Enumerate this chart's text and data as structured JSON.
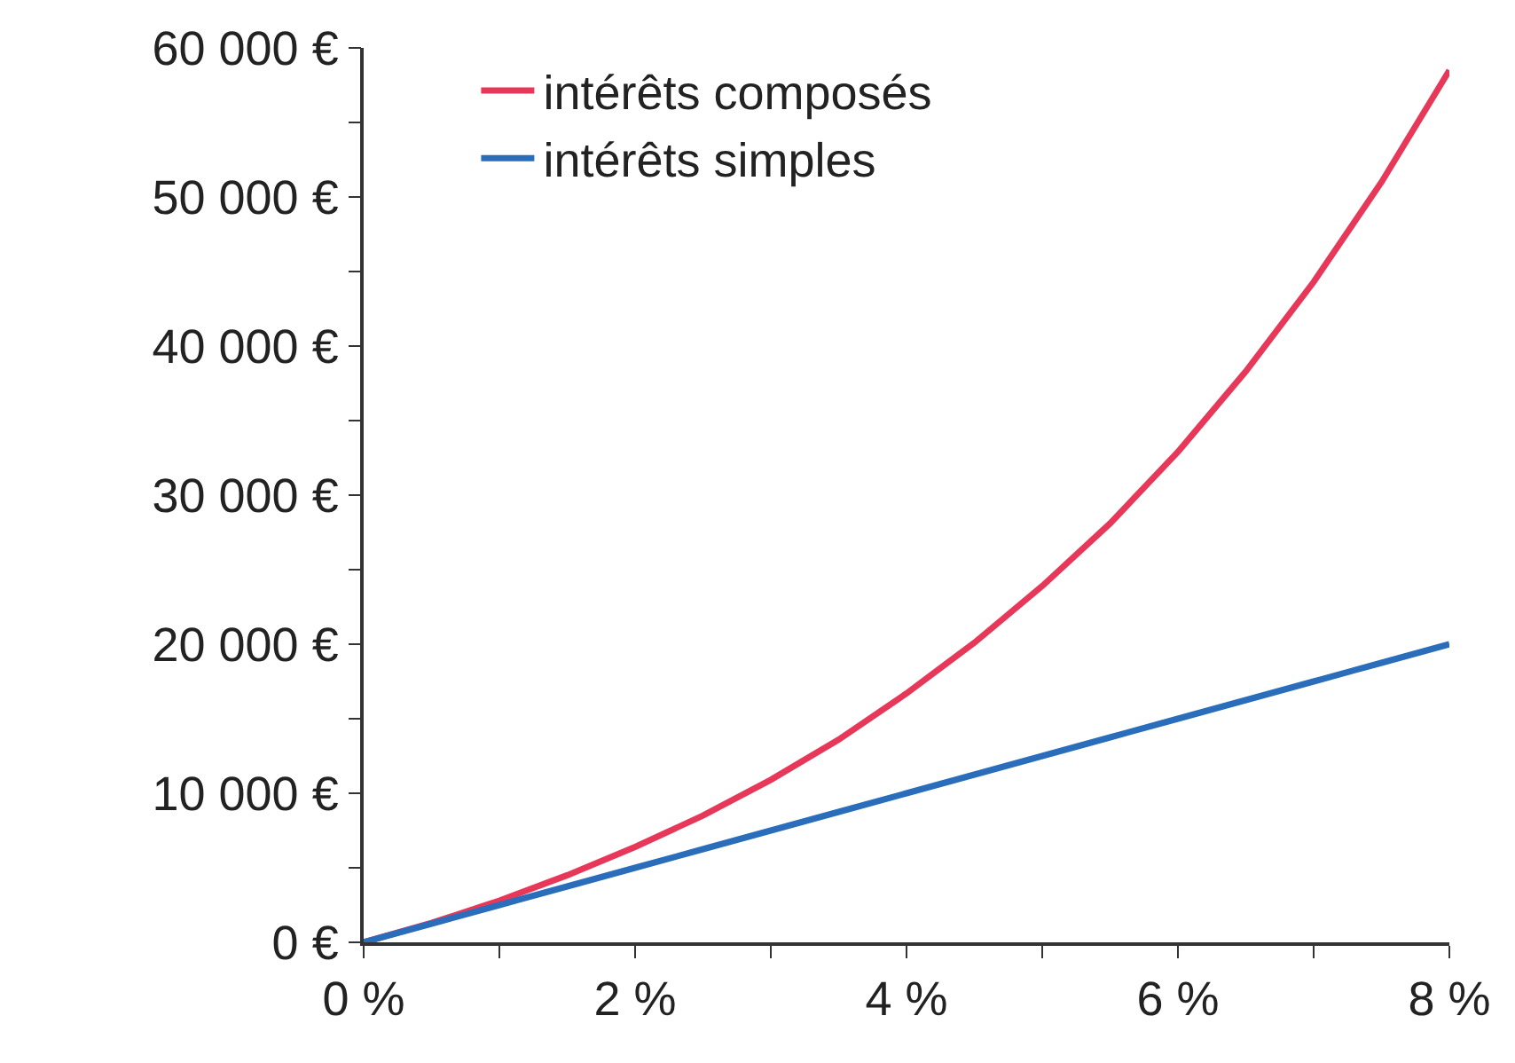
{
  "chart_data": {
    "type": "line",
    "x": [
      0,
      0.5,
      1,
      1.5,
      2,
      2.5,
      3,
      3.5,
      4,
      4.5,
      5,
      5.5,
      6,
      6.5,
      7,
      7.5,
      8
    ],
    "series": [
      {
        "name": "intérêts composés",
        "color": "#e8385a",
        "values": [
          0,
          1300,
          2800,
          4500,
          6400,
          8500,
          10900,
          13600,
          16700,
          20100,
          23900,
          28100,
          32900,
          38300,
          44300,
          51000,
          58500
        ]
      },
      {
        "name": "intérêts simples",
        "color": "#2a6ebb",
        "values": [
          0,
          1250,
          2500,
          3750,
          5000,
          6250,
          7500,
          8750,
          10000,
          11250,
          12500,
          13750,
          15000,
          16250,
          17500,
          18750,
          20000
        ]
      }
    ],
    "xlim": [
      0,
      8
    ],
    "xticks": [
      {
        "value": 0,
        "label": "0 %"
      },
      {
        "value": 1,
        "label": null
      },
      {
        "value": 2,
        "label": "2 %"
      },
      {
        "value": 3,
        "label": null
      },
      {
        "value": 4,
        "label": "4 %"
      },
      {
        "value": 5,
        "label": null
      },
      {
        "value": 6,
        "label": "6 %"
      },
      {
        "value": 7,
        "label": null
      },
      {
        "value": 8,
        "label": "8 %"
      }
    ],
    "ylim": [
      0,
      60000
    ],
    "yticks": [
      {
        "value": 0,
        "label": "0 €"
      },
      {
        "value": 5000,
        "label": null
      },
      {
        "value": 10000,
        "label": "10 000 €"
      },
      {
        "value": 15000,
        "label": null
      },
      {
        "value": 20000,
        "label": "20 000 €"
      },
      {
        "value": 25000,
        "label": null
      },
      {
        "value": 30000,
        "label": "30 000 €"
      },
      {
        "value": 35000,
        "label": null
      },
      {
        "value": 40000,
        "label": "40 000 €"
      },
      {
        "value": 45000,
        "label": null
      },
      {
        "value": 50000,
        "label": "50 000 €"
      },
      {
        "value": 55000,
        "label": null
      },
      {
        "value": 60000,
        "label": "60 000 €"
      }
    ],
    "grid": false,
    "legend": "top left",
    "marker": "none",
    "line_style": "solid"
  }
}
